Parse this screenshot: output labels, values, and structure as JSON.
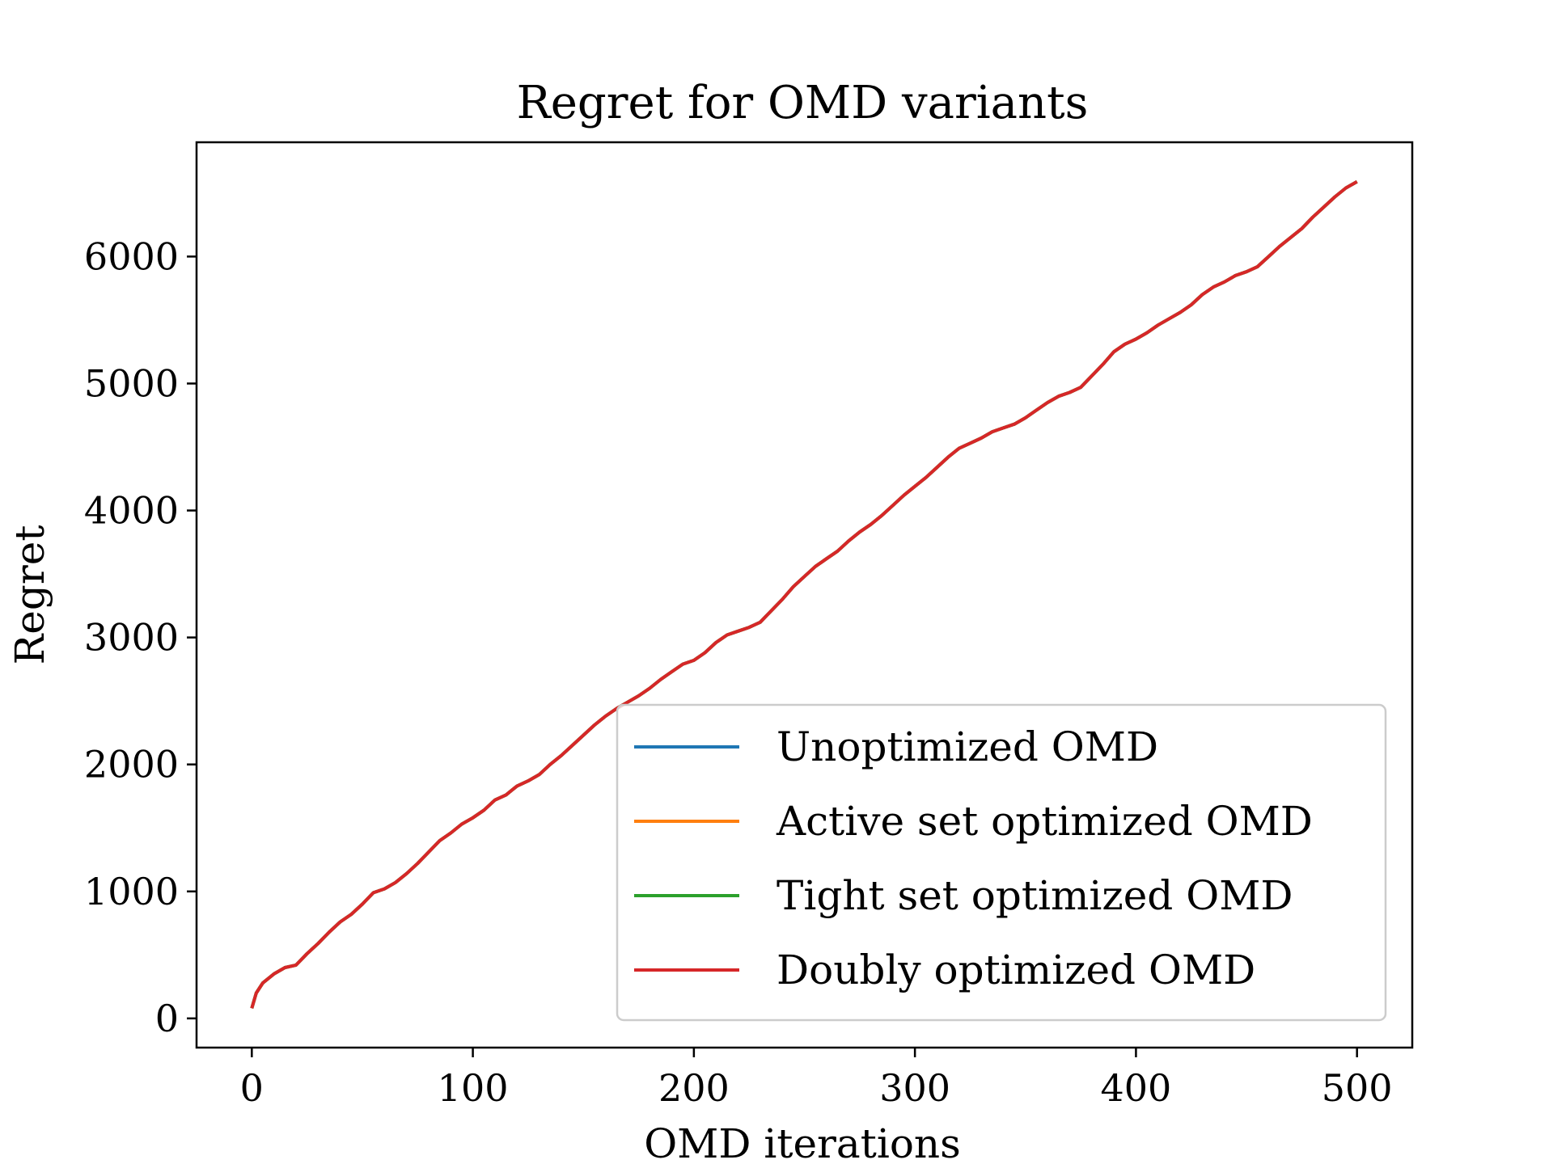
{
  "chart_data": {
    "type": "line",
    "title": "Regret for OMD variants",
    "xlabel": "OMD iterations",
    "ylabel": "Regret",
    "xlim": [
      -25,
      525
    ],
    "ylim": [
      -230,
      6900
    ],
    "xticks": [
      0,
      100,
      200,
      300,
      400,
      500
    ],
    "yticks": [
      0,
      1000,
      2000,
      3000,
      4000,
      5000,
      6000
    ],
    "grid": false,
    "legend_position": "lower-right",
    "x": [
      0,
      2,
      5,
      10,
      15,
      20,
      25,
      30,
      35,
      40,
      45,
      50,
      55,
      60,
      65,
      70,
      75,
      80,
      85,
      90,
      95,
      100,
      105,
      110,
      115,
      120,
      125,
      130,
      135,
      140,
      145,
      150,
      155,
      160,
      165,
      170,
      175,
      180,
      185,
      190,
      195,
      200,
      205,
      210,
      215,
      220,
      225,
      230,
      235,
      240,
      245,
      250,
      255,
      260,
      265,
      270,
      275,
      280,
      285,
      290,
      295,
      300,
      305,
      310,
      315,
      320,
      325,
      330,
      335,
      340,
      345,
      350,
      355,
      360,
      365,
      370,
      375,
      380,
      385,
      390,
      395,
      400,
      405,
      410,
      415,
      420,
      425,
      430,
      435,
      440,
      445,
      450,
      455,
      460,
      465,
      470,
      475,
      480,
      485,
      490,
      495,
      500
    ],
    "series": [
      {
        "name": "Unoptimized OMD",
        "color": "#1f77b4",
        "values": [
          80,
          200,
          280,
          350,
          400,
          420,
          510,
          590,
          680,
          760,
          820,
          900,
          990,
          1020,
          1070,
          1140,
          1220,
          1310,
          1400,
          1460,
          1530,
          1580,
          1640,
          1720,
          1760,
          1830,
          1870,
          1920,
          2000,
          2070,
          2150,
          2230,
          2310,
          2380,
          2440,
          2490,
          2540,
          2600,
          2670,
          2730,
          2790,
          2820,
          2880,
          2960,
          3020,
          3050,
          3080,
          3120,
          3210,
          3300,
          3400,
          3480,
          3560,
          3620,
          3680,
          3760,
          3830,
          3890,
          3960,
          4040,
          4120,
          4190,
          4260,
          4340,
          4420,
          4490,
          4530,
          4570,
          4620,
          4650,
          4680,
          4730,
          4790,
          4850,
          4900,
          4930,
          4970,
          5060,
          5150,
          5250,
          5310,
          5350,
          5400,
          5460,
          5510,
          5560,
          5620,
          5700,
          5760,
          5800,
          5850,
          5880,
          5920,
          6000,
          6080,
          6150,
          6220,
          6310,
          6390,
          6470,
          6540,
          6590
        ]
      },
      {
        "name": "Active set optimized OMD",
        "color": "#ff7f0e",
        "values": [
          80,
          200,
          280,
          350,
          400,
          420,
          510,
          590,
          680,
          760,
          820,
          900,
          990,
          1020,
          1070,
          1140,
          1220,
          1310,
          1400,
          1460,
          1530,
          1580,
          1640,
          1720,
          1760,
          1830,
          1870,
          1920,
          2000,
          2070,
          2150,
          2230,
          2310,
          2380,
          2440,
          2490,
          2540,
          2600,
          2670,
          2730,
          2790,
          2820,
          2880,
          2960,
          3020,
          3050,
          3080,
          3120,
          3210,
          3300,
          3400,
          3480,
          3560,
          3620,
          3680,
          3760,
          3830,
          3890,
          3960,
          4040,
          4120,
          4190,
          4260,
          4340,
          4420,
          4490,
          4530,
          4570,
          4620,
          4650,
          4680,
          4730,
          4790,
          4850,
          4900,
          4930,
          4970,
          5060,
          5150,
          5250,
          5310,
          5350,
          5400,
          5460,
          5510,
          5560,
          5620,
          5700,
          5760,
          5800,
          5850,
          5880,
          5920,
          6000,
          6080,
          6150,
          6220,
          6310,
          6390,
          6470,
          6540,
          6590
        ]
      },
      {
        "name": "Tight set optimized OMD",
        "color": "#2ca02c",
        "values": [
          80,
          200,
          280,
          350,
          400,
          420,
          510,
          590,
          680,
          760,
          820,
          900,
          990,
          1020,
          1070,
          1140,
          1220,
          1310,
          1400,
          1460,
          1530,
          1580,
          1640,
          1720,
          1760,
          1830,
          1870,
          1920,
          2000,
          2070,
          2150,
          2230,
          2310,
          2380,
          2440,
          2490,
          2540,
          2600,
          2670,
          2730,
          2790,
          2820,
          2880,
          2960,
          3020,
          3050,
          3080,
          3120,
          3210,
          3300,
          3400,
          3480,
          3560,
          3620,
          3680,
          3760,
          3830,
          3890,
          3960,
          4040,
          4120,
          4190,
          4260,
          4340,
          4420,
          4490,
          4530,
          4570,
          4620,
          4650,
          4680,
          4730,
          4790,
          4850,
          4900,
          4930,
          4970,
          5060,
          5150,
          5250,
          5310,
          5350,
          5400,
          5460,
          5510,
          5560,
          5620,
          5700,
          5760,
          5800,
          5850,
          5880,
          5920,
          6000,
          6080,
          6150,
          6220,
          6310,
          6390,
          6470,
          6540,
          6590
        ]
      },
      {
        "name": "Doubly optimized OMD",
        "color": "#d62728",
        "values": [
          80,
          200,
          280,
          350,
          400,
          420,
          510,
          590,
          680,
          760,
          820,
          900,
          990,
          1020,
          1070,
          1140,
          1220,
          1310,
          1400,
          1460,
          1530,
          1580,
          1640,
          1720,
          1760,
          1830,
          1870,
          1920,
          2000,
          2070,
          2150,
          2230,
          2310,
          2380,
          2440,
          2490,
          2540,
          2600,
          2670,
          2730,
          2790,
          2820,
          2880,
          2960,
          3020,
          3050,
          3080,
          3120,
          3210,
          3300,
          3400,
          3480,
          3560,
          3620,
          3680,
          3760,
          3830,
          3890,
          3960,
          4040,
          4120,
          4190,
          4260,
          4340,
          4420,
          4490,
          4530,
          4570,
          4620,
          4650,
          4680,
          4730,
          4790,
          4850,
          4900,
          4930,
          4970,
          5060,
          5150,
          5250,
          5310,
          5350,
          5400,
          5460,
          5510,
          5560,
          5620,
          5700,
          5760,
          5800,
          5850,
          5880,
          5920,
          6000,
          6080,
          6150,
          6220,
          6310,
          6390,
          6470,
          6540,
          6590
        ]
      }
    ]
  }
}
